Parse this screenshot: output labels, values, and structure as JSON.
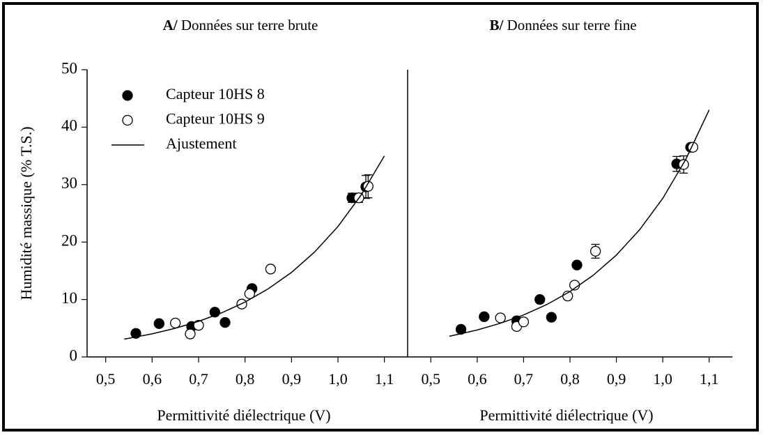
{
  "chart_data": [
    {
      "type": "scatter",
      "panel": "A/",
      "title": "Données sur terre brute",
      "xlabel": "Permittivité diélectrique (V)",
      "ylabel": "Humidité massique (% T.S.)",
      "xlim": [
        0.46,
        1.15
      ],
      "ylim": [
        0,
        50
      ],
      "xticks": [
        {
          "value": 0.5,
          "label": "0,5"
        },
        {
          "value": 0.6,
          "label": "0,6"
        },
        {
          "value": 0.7,
          "label": "0,7"
        },
        {
          "value": 0.8,
          "label": "0,8"
        },
        {
          "value": 0.9,
          "label": "0,9"
        },
        {
          "value": 1.0,
          "label": "1,0"
        },
        {
          "value": 1.1,
          "label": "1,1"
        }
      ],
      "yticks": [
        0,
        10,
        20,
        30,
        40,
        50
      ],
      "legend": "upper left",
      "series": [
        {
          "name": "Capteur 10HS 8",
          "marker": "filled",
          "color": "#000000",
          "x": [
            0.565,
            0.615,
            0.685,
            0.735,
            0.757,
            0.815,
            1.03,
            1.06
          ],
          "values": [
            4.1,
            5.8,
            5.3,
            7.8,
            6.0,
            11.9,
            27.7,
            29.6
          ],
          "errors": [
            null,
            null,
            null,
            null,
            null,
            null,
            0.8,
            2.0
          ]
        },
        {
          "name": "Capteur 10HS 9",
          "marker": "open",
          "color": "#000000",
          "x": [
            0.65,
            0.682,
            0.7,
            0.793,
            0.81,
            0.855,
            1.045,
            1.065
          ],
          "values": [
            5.9,
            4.0,
            5.5,
            9.2,
            11.0,
            15.3,
            27.7,
            29.7
          ],
          "errors": [
            null,
            null,
            null,
            null,
            null,
            null,
            0.8,
            2.0
          ]
        },
        {
          "name": "Ajustement",
          "marker": "line",
          "color": "#000000",
          "x": [
            0.54,
            0.6,
            0.65,
            0.7,
            0.75,
            0.8,
            0.85,
            0.9,
            0.95,
            1.0,
            1.05,
            1.1
          ],
          "values": [
            3.1,
            4.02,
            4.99,
            6.19,
            7.69,
            9.55,
            11.86,
            14.71,
            18.28,
            22.7,
            28.2,
            35.0
          ]
        }
      ]
    },
    {
      "type": "scatter",
      "panel": "B/",
      "title": "Données sur terre fine",
      "xlabel": "Permittivité diélectrique (V)",
      "xlim": [
        0.45,
        1.15
      ],
      "ylim": [
        0,
        50
      ],
      "xticks": [
        {
          "value": 0.5,
          "label": "0,5"
        },
        {
          "value": 0.6,
          "label": "0,6"
        },
        {
          "value": 0.7,
          "label": "0,7"
        },
        {
          "value": 0.8,
          "label": "0,8"
        },
        {
          "value": 0.9,
          "label": "0,9"
        },
        {
          "value": 1.0,
          "label": "1,0"
        },
        {
          "value": 1.1,
          "label": "1,1"
        }
      ],
      "series": [
        {
          "marker": "filled",
          "color": "#000000",
          "x": [
            0.565,
            0.615,
            0.685,
            0.735,
            0.76,
            0.815,
            1.03,
            1.06
          ],
          "values": [
            4.8,
            7.0,
            6.3,
            10.0,
            6.9,
            16.0,
            33.6,
            36.5
          ],
          "errors": [
            null,
            null,
            null,
            null,
            null,
            null,
            1.3,
            null
          ]
        },
        {
          "marker": "open",
          "color": "#000000",
          "x": [
            0.65,
            0.685,
            0.7,
            0.795,
            0.81,
            0.855,
            1.045,
            1.065
          ],
          "values": [
            6.8,
            5.3,
            6.1,
            10.6,
            12.5,
            18.4,
            33.5,
            36.5
          ],
          "errors": [
            null,
            null,
            null,
            null,
            null,
            1.2,
            1.5,
            null
          ]
        },
        {
          "marker": "line",
          "color": "#000000",
          "x": [
            0.54,
            0.6,
            0.65,
            0.7,
            0.75,
            0.8,
            0.85,
            0.9,
            0.95,
            1.0,
            1.05,
            1.1
          ],
          "values": [
            3.6,
            4.69,
            5.86,
            7.31,
            9.12,
            11.38,
            14.21,
            17.73,
            22.13,
            27.6,
            34.45,
            43.0
          ]
        }
      ]
    }
  ]
}
